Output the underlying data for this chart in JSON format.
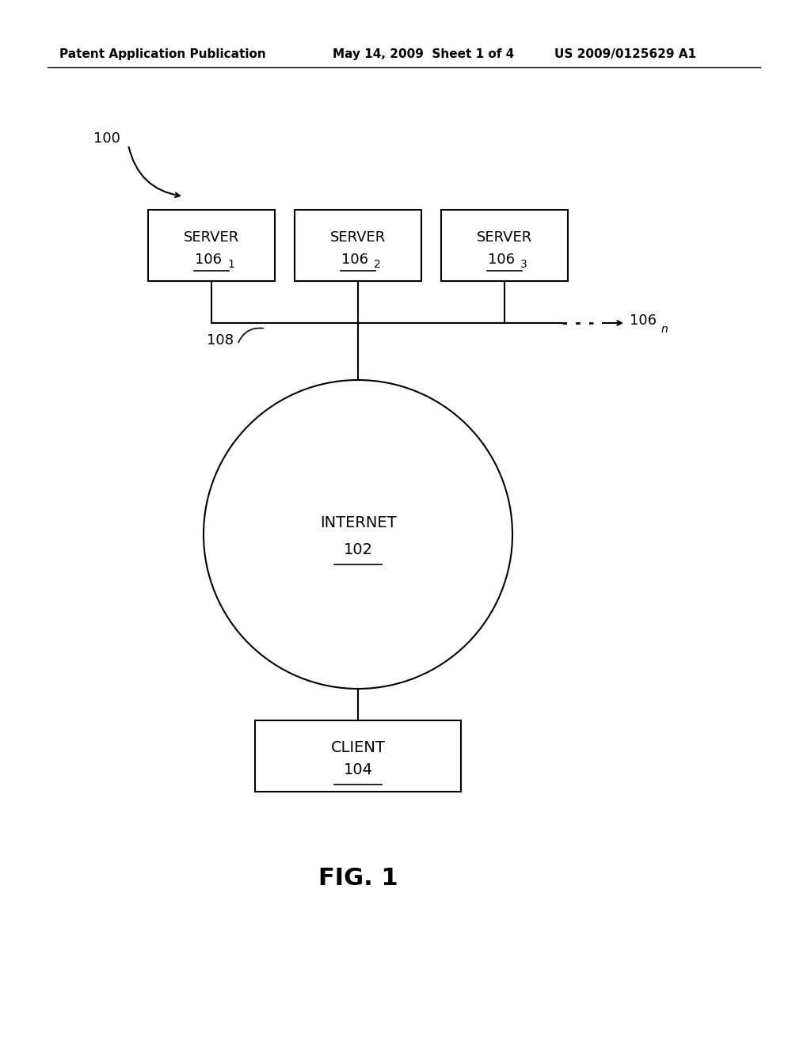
{
  "bg_color": "#ffffff",
  "header_left": "Patent Application Publication",
  "header_mid": "May 14, 2009  Sheet 1 of 4",
  "header_right": "US 2009/0125629 A1",
  "fig_label": "FIG. 1",
  "diagram_label": "100"
}
